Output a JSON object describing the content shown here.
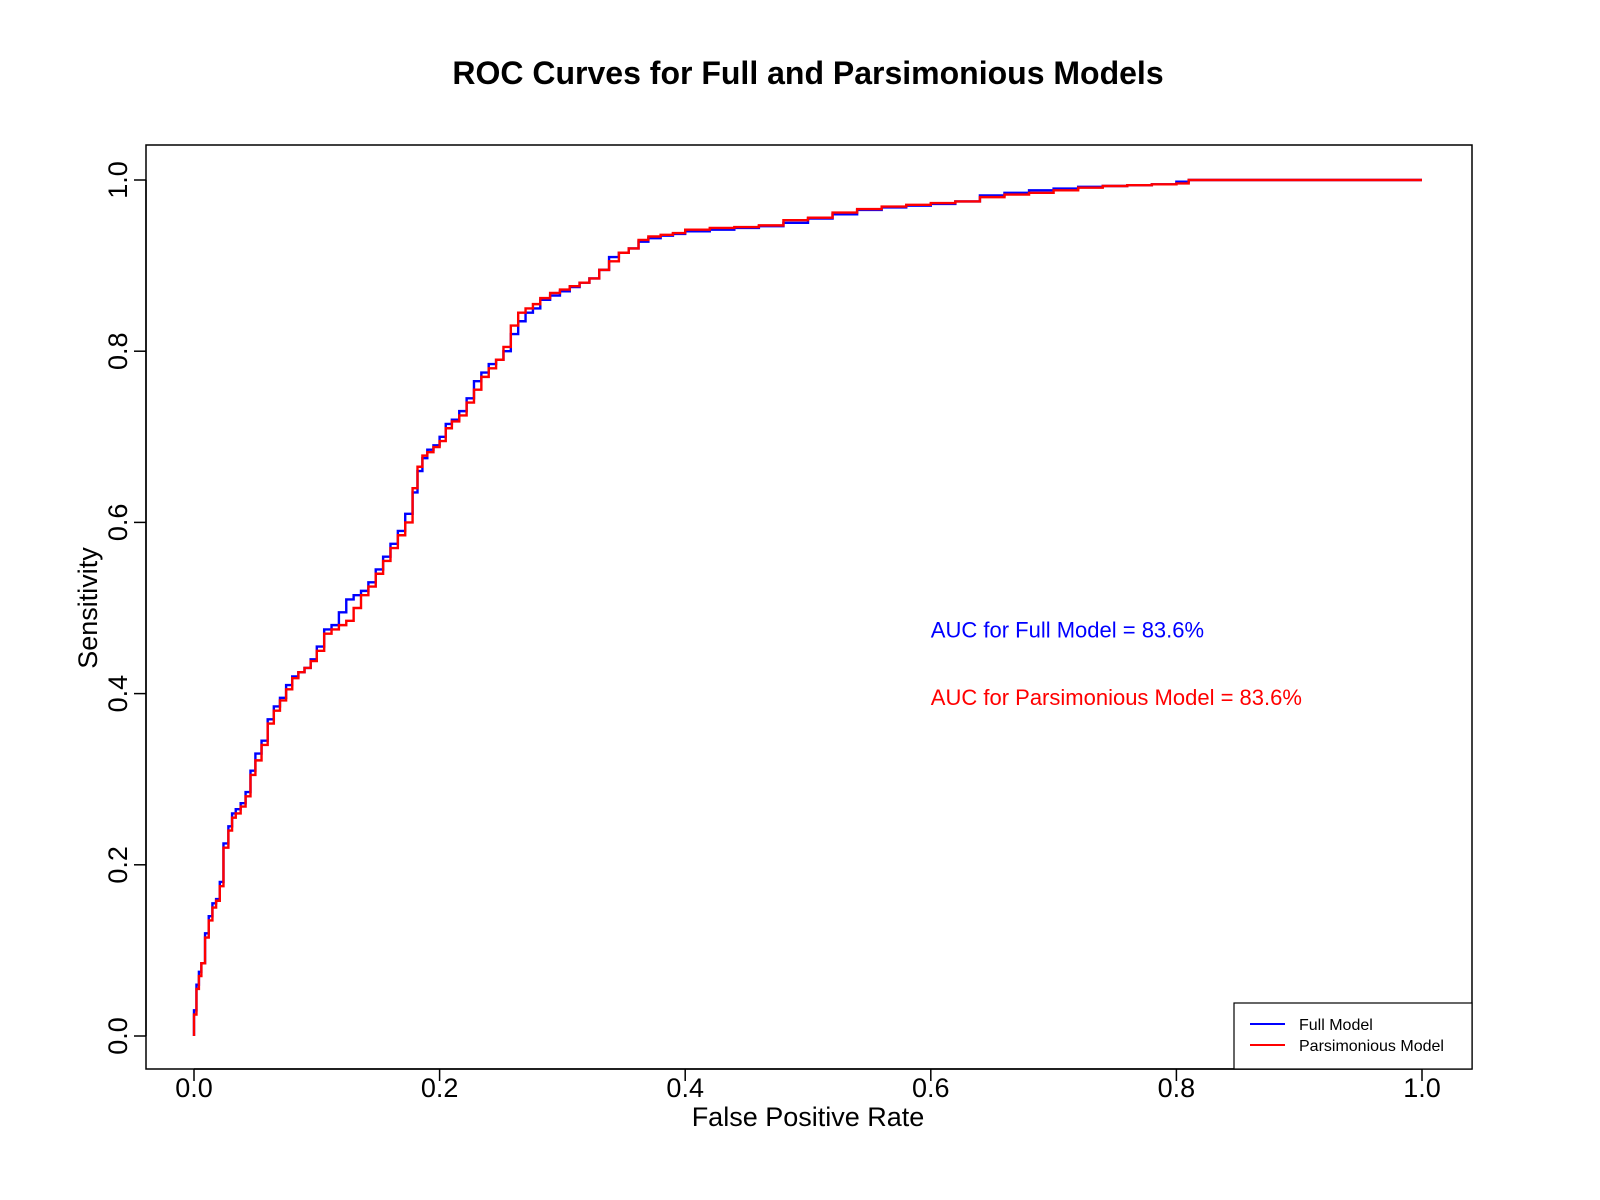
{
  "chart_data": {
    "type": "line",
    "title": "ROC Curves for Full and Parsimonious Models",
    "xlabel": "False Positive Rate",
    "ylabel": "Sensitivity",
    "xlim": [
      0,
      1
    ],
    "ylim": [
      0,
      1
    ],
    "x_ticks": [
      "0.0",
      "0.2",
      "0.4",
      "0.6",
      "0.8",
      "1.0"
    ],
    "y_ticks": [
      "0.0",
      "0.2",
      "0.4",
      "0.6",
      "0.8",
      "1.0"
    ],
    "grid": false,
    "legend_position": "bottom-right",
    "annotations": [
      {
        "text": "AUC for Full Model = 83.6%",
        "color": "#0000ff",
        "x": 0.6,
        "y": 0.475
      },
      {
        "text": "AUC for Parsimonious Model = 83.6%",
        "color": "#ff0000",
        "x": 0.6,
        "y": 0.396
      }
    ],
    "series": [
      {
        "name": "Full Model",
        "color": "#0000ff",
        "x": [
          0.0,
          0.002,
          0.004,
          0.006,
          0.009,
          0.012,
          0.015,
          0.018,
          0.021,
          0.024,
          0.028,
          0.031,
          0.034,
          0.038,
          0.042,
          0.046,
          0.05,
          0.055,
          0.06,
          0.065,
          0.07,
          0.075,
          0.08,
          0.085,
          0.09,
          0.095,
          0.1,
          0.106,
          0.112,
          0.118,
          0.124,
          0.13,
          0.136,
          0.142,
          0.148,
          0.154,
          0.16,
          0.166,
          0.172,
          0.178,
          0.182,
          0.186,
          0.19,
          0.195,
          0.2,
          0.205,
          0.21,
          0.216,
          0.222,
          0.228,
          0.234,
          0.24,
          0.246,
          0.252,
          0.258,
          0.264,
          0.27,
          0.276,
          0.282,
          0.29,
          0.298,
          0.306,
          0.314,
          0.322,
          0.33,
          0.338,
          0.346,
          0.354,
          0.362,
          0.37,
          0.38,
          0.39,
          0.4,
          0.42,
          0.44,
          0.46,
          0.48,
          0.5,
          0.52,
          0.54,
          0.56,
          0.58,
          0.6,
          0.62,
          0.64,
          0.66,
          0.68,
          0.7,
          0.72,
          0.74,
          0.76,
          0.78,
          0.8,
          0.81,
          0.82,
          0.85,
          0.9,
          0.95,
          1.0
        ],
        "y": [
          0.0,
          0.03,
          0.06,
          0.075,
          0.085,
          0.12,
          0.14,
          0.155,
          0.16,
          0.18,
          0.225,
          0.245,
          0.26,
          0.265,
          0.272,
          0.285,
          0.31,
          0.33,
          0.345,
          0.37,
          0.385,
          0.395,
          0.41,
          0.42,
          0.425,
          0.43,
          0.44,
          0.455,
          0.475,
          0.48,
          0.495,
          0.51,
          0.515,
          0.52,
          0.53,
          0.545,
          0.56,
          0.575,
          0.59,
          0.61,
          0.635,
          0.66,
          0.675,
          0.685,
          0.69,
          0.7,
          0.715,
          0.72,
          0.73,
          0.745,
          0.765,
          0.775,
          0.785,
          0.79,
          0.8,
          0.82,
          0.835,
          0.845,
          0.85,
          0.86,
          0.865,
          0.87,
          0.875,
          0.88,
          0.885,
          0.895,
          0.91,
          0.915,
          0.92,
          0.928,
          0.932,
          0.935,
          0.937,
          0.94,
          0.942,
          0.944,
          0.946,
          0.95,
          0.955,
          0.96,
          0.965,
          0.968,
          0.97,
          0.972,
          0.975,
          0.982,
          0.985,
          0.988,
          0.99,
          0.992,
          0.993,
          0.994,
          0.995,
          0.998,
          1.0,
          1.0,
          1.0,
          1.0,
          1.0
        ]
      },
      {
        "name": "Parsimonious Model",
        "color": "#ff0000",
        "x": [
          0.0,
          0.002,
          0.004,
          0.006,
          0.009,
          0.012,
          0.015,
          0.018,
          0.021,
          0.024,
          0.028,
          0.031,
          0.034,
          0.038,
          0.042,
          0.046,
          0.05,
          0.055,
          0.06,
          0.065,
          0.07,
          0.075,
          0.08,
          0.085,
          0.09,
          0.095,
          0.1,
          0.106,
          0.112,
          0.118,
          0.124,
          0.13,
          0.136,
          0.142,
          0.148,
          0.154,
          0.16,
          0.166,
          0.172,
          0.178,
          0.182,
          0.186,
          0.19,
          0.195,
          0.2,
          0.205,
          0.21,
          0.216,
          0.222,
          0.228,
          0.234,
          0.24,
          0.246,
          0.252,
          0.258,
          0.264,
          0.27,
          0.276,
          0.282,
          0.29,
          0.298,
          0.306,
          0.314,
          0.322,
          0.33,
          0.338,
          0.346,
          0.354,
          0.362,
          0.37,
          0.38,
          0.39,
          0.4,
          0.42,
          0.44,
          0.46,
          0.48,
          0.5,
          0.52,
          0.54,
          0.56,
          0.58,
          0.6,
          0.62,
          0.64,
          0.66,
          0.68,
          0.7,
          0.72,
          0.74,
          0.76,
          0.78,
          0.8,
          0.81,
          0.82,
          0.85,
          0.9,
          0.95,
          1.0
        ],
        "y": [
          0.0,
          0.025,
          0.055,
          0.07,
          0.085,
          0.115,
          0.135,
          0.15,
          0.158,
          0.175,
          0.22,
          0.24,
          0.255,
          0.26,
          0.268,
          0.28,
          0.305,
          0.322,
          0.34,
          0.365,
          0.38,
          0.392,
          0.405,
          0.418,
          0.425,
          0.43,
          0.438,
          0.45,
          0.47,
          0.475,
          0.48,
          0.485,
          0.5,
          0.515,
          0.525,
          0.54,
          0.555,
          0.57,
          0.585,
          0.6,
          0.64,
          0.665,
          0.678,
          0.682,
          0.688,
          0.695,
          0.71,
          0.718,
          0.725,
          0.74,
          0.755,
          0.77,
          0.78,
          0.79,
          0.805,
          0.83,
          0.845,
          0.85,
          0.855,
          0.862,
          0.868,
          0.872,
          0.876,
          0.88,
          0.885,
          0.895,
          0.905,
          0.915,
          0.92,
          0.93,
          0.934,
          0.936,
          0.938,
          0.942,
          0.944,
          0.945,
          0.947,
          0.953,
          0.956,
          0.962,
          0.966,
          0.969,
          0.971,
          0.973,
          0.975,
          0.98,
          0.983,
          0.985,
          0.988,
          0.991,
          0.993,
          0.994,
          0.995,
          0.996,
          1.0,
          1.0,
          1.0,
          1.0,
          1.0
        ]
      }
    ]
  }
}
